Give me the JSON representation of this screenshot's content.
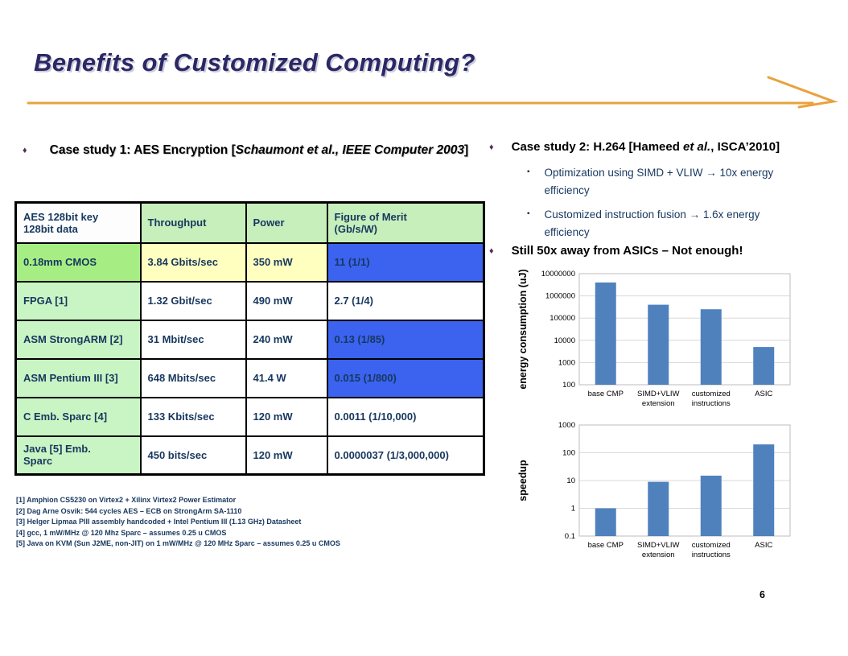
{
  "slide": {
    "title": "Benefits of Customized Computing?",
    "page_number": "6"
  },
  "colors": {
    "accent_line": "#E9A23B",
    "title_text": "#2B2866",
    "table_text_navy": "#17375E",
    "table_cell_blue": "#3B63EF",
    "table_cell_green": "#C9F5C4",
    "table_cell_lime": "#A6EE83",
    "table_cell_yellow": "#FFFFC0",
    "bar_blue": "#4F81BD"
  },
  "case_study_1": {
    "bullet_glyph": "♦",
    "heading_prefix": "Case study 1: AES Encryption [",
    "heading_italic": "Schaumont et al., IEEE Computer 2003",
    "heading_suffix": "]",
    "table": {
      "headers": [
        {
          "text": "AES 128bit key\n128bit data",
          "style": "white"
        },
        {
          "text": "Throughput",
          "style": "hgreen"
        },
        {
          "text": "Power",
          "style": "hgreen"
        },
        {
          "text": "Figure of Merit\n(Gb/s/W)",
          "style": "hgreen"
        }
      ],
      "rows": [
        {
          "cells": [
            {
              "text": "0.18mm CMOS",
              "style": "lime"
            },
            {
              "text": "3.84 Gbits/sec",
              "style": "yellow"
            },
            {
              "text": "350 mW",
              "style": "yellow"
            },
            {
              "text": "11 (1/1)",
              "style": "blue"
            }
          ]
        },
        {
          "cells": [
            {
              "text": "FPGA [1]",
              "style": "green"
            },
            {
              "text": "1.32 Gbit/sec",
              "style": "plain"
            },
            {
              "text": "490 mW",
              "style": "plain"
            },
            {
              "text": "2.7 (1/4)",
              "style": "plain"
            }
          ]
        },
        {
          "cells": [
            {
              "text": "ASM StrongARM [2]",
              "style": "green"
            },
            {
              "text": "31 Mbit/sec",
              "style": "plain"
            },
            {
              "text": "240 mW",
              "style": "plain"
            },
            {
              "text": "0.13 (1/85)",
              "style": "blue"
            }
          ]
        },
        {
          "cells": [
            {
              "text": "ASM Pentium III [3]",
              "style": "green"
            },
            {
              "text": "648 Mbits/sec",
              "style": "plain"
            },
            {
              "text": "41.4 W",
              "style": "plain"
            },
            {
              "text": "0.015 (1/800)",
              "style": "blue"
            }
          ]
        },
        {
          "cells": [
            {
              "text": "C Emb. Sparc [4]",
              "style": "green"
            },
            {
              "text": "133 Kbits/sec",
              "style": "plain"
            },
            {
              "text": "120 mW",
              "style": "plain"
            },
            {
              "text": "0.0011 (1/10,000)",
              "style": "plain"
            }
          ]
        },
        {
          "cells": [
            {
              "text": "Java [5] Emb.\nSparc",
              "style": "green"
            },
            {
              "text": "450 bits/sec",
              "style": "plain"
            },
            {
              "text": "120 mW",
              "style": "plain"
            },
            {
              "text": "0.0000037 (1/3,000,000)",
              "style": "plain"
            }
          ]
        }
      ]
    },
    "footnotes": [
      "[1] Amphion CS5230 on Virtex2 + Xilinx Virtex2 Power Estimator",
      "[2] Dag Arne Osvik: 544 cycles AES – ECB on StrongArm SA-1110",
      "[3] Helger Lipmaa PIII assembly handcoded + Intel Pentium III (1.13 GHz) Datasheet",
      "[4] gcc, 1 mW/MHz @ 120 Mhz Sparc – assumes 0.25 u CMOS",
      "[5] Java on KVM (Sun J2ME, non-JIT) on 1 mW/MHz @ 120 MHz Sparc – assumes 0.25 u CMOS"
    ]
  },
  "case_study_2": {
    "bullet_glyph": "♦",
    "heading_prefix": "Case study 2: H.264 [Hameed ",
    "heading_italic": "et al.",
    "heading_suffix": ", ISCA’2010]",
    "sub_bullets": [
      {
        "glyph": "▪",
        "text": "Optimization using SIMD + VLIW → 10x energy efficiency"
      },
      {
        "glyph": "▪",
        "text": "Customized instruction fusion → 1.6x energy efficiency"
      }
    ],
    "conclusion_bullet": {
      "glyph": "♦",
      "text": "Still 50x away from ASICs – Not enough!"
    }
  },
  "chart_data": [
    {
      "type": "bar",
      "title": "",
      "ylabel": "energy consumption (uJ)",
      "xlabel": "",
      "categories": [
        "base CMP",
        "SIMD+VLIW\nextension",
        "customized\ninstructions",
        "ASIC"
      ],
      "values": [
        4000000,
        400000,
        250000,
        5000
      ],
      "yscale": "log",
      "ylim": [
        100,
        10000000
      ],
      "ytick_labels": [
        "100",
        "1000",
        "10000",
        "100000",
        "1000000",
        "10000000"
      ],
      "bar_color": "#4F81BD",
      "grid": true,
      "legend_position": "none"
    },
    {
      "type": "bar",
      "title": "",
      "ylabel": "speedup",
      "xlabel": "",
      "categories": [
        "base CMP",
        "SIMD+VLIW\nextension",
        "customized\ninstructions",
        "ASIC"
      ],
      "values": [
        1,
        9,
        15,
        200
      ],
      "yscale": "log",
      "ylim": [
        0.1,
        1000
      ],
      "ytick_labels": [
        "0.1",
        "1",
        "10",
        "100",
        "1000"
      ],
      "bar_color": "#4F81BD",
      "grid": true,
      "legend_position": "none"
    }
  ]
}
